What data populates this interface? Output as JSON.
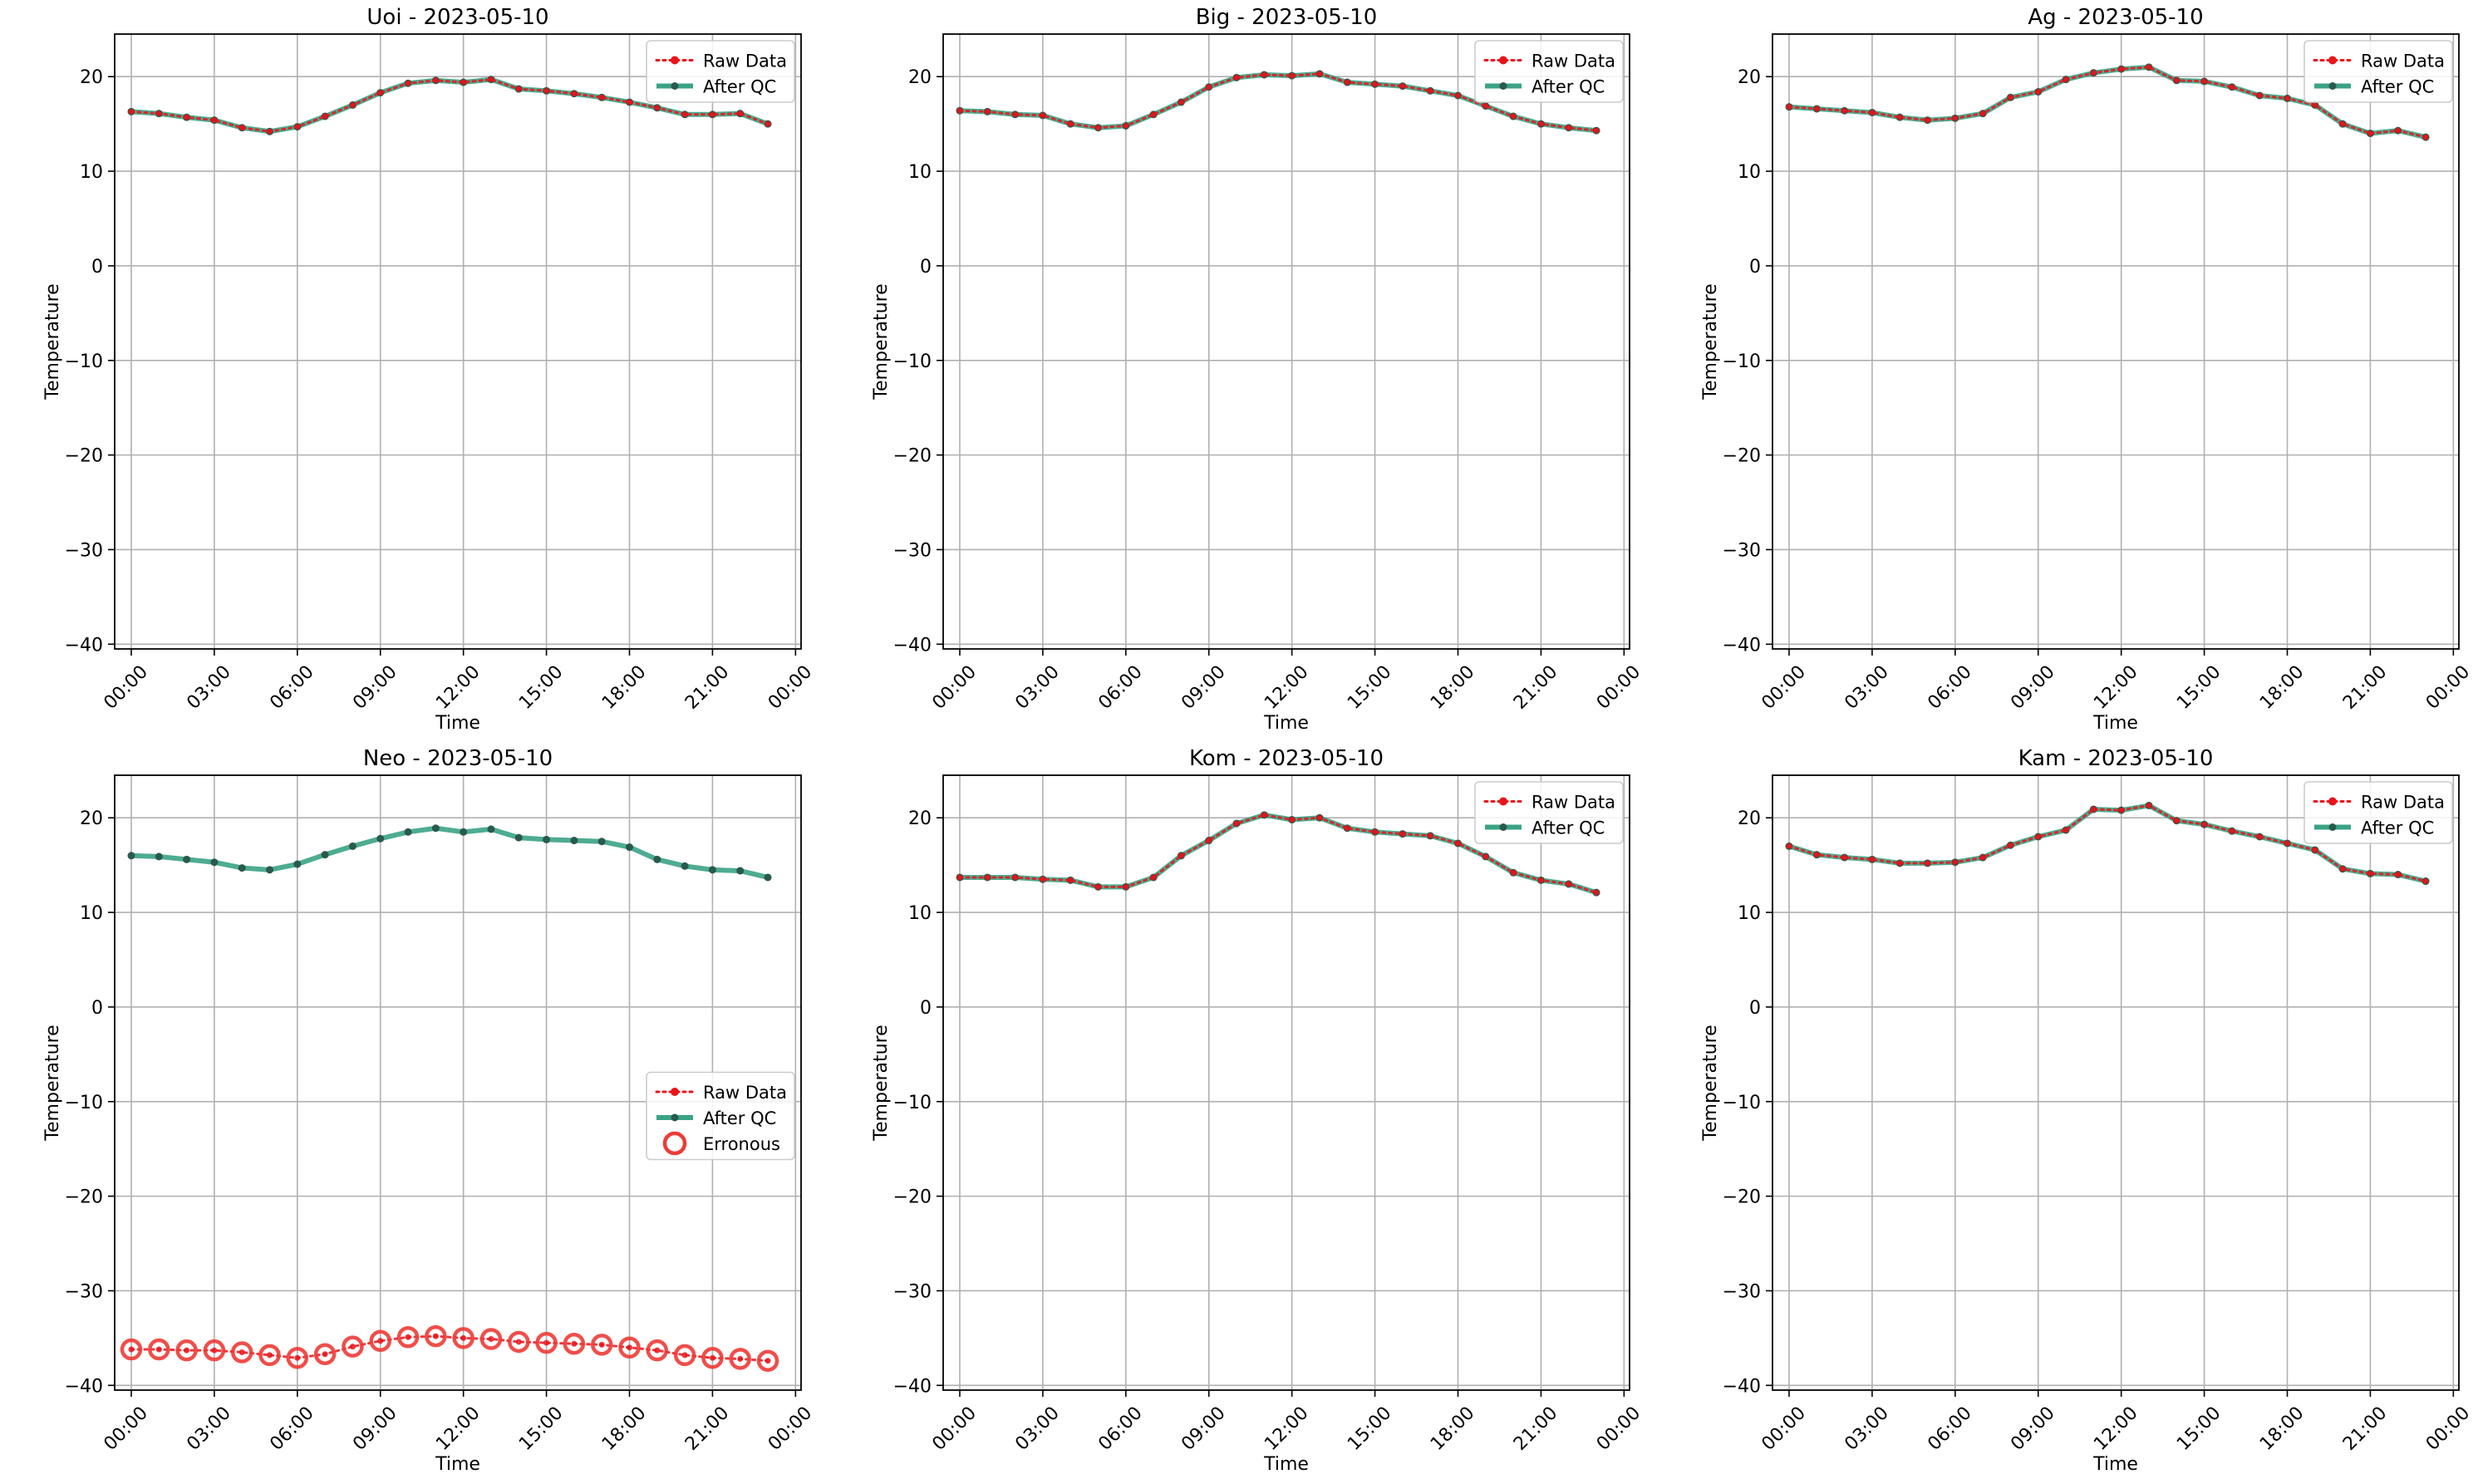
{
  "colors": {
    "raw": "#e8141a",
    "qc_line": "#3aa385",
    "qc_marker": "#2a5a4c",
    "erroneous": "#ee3b36",
    "grid": "#b0b0b0",
    "axis": "#000000"
  },
  "chart_data": [
    {
      "type": "line",
      "title": "Uoi - 2023-05-10",
      "xlabel": "Time",
      "ylabel": "Temperature",
      "ylim": [
        -40.5,
        24.5
      ],
      "xlim": [
        -0.6,
        24.2
      ],
      "grid": true,
      "legend_position": "upper right",
      "x_tick_labels": [
        "00:00",
        "03:00",
        "06:00",
        "09:00",
        "12:00",
        "15:00",
        "18:00",
        "21:00",
        "00:00"
      ],
      "x_tick_values": [
        0,
        3,
        6,
        9,
        12,
        15,
        18,
        21,
        24
      ],
      "y_tick_labels": [
        "20",
        "10",
        "0",
        "−10",
        "−20",
        "−30",
        "−40"
      ],
      "y_tick_values": [
        20,
        10,
        0,
        -10,
        -20,
        -30,
        -40
      ],
      "legend": [
        "Raw Data",
        "After QC"
      ],
      "x": [
        0,
        1,
        2,
        3,
        4,
        5,
        6,
        7,
        8,
        9,
        10,
        11,
        12,
        13,
        14,
        15,
        16,
        17,
        18,
        19,
        20,
        21,
        22,
        23
      ],
      "series": [
        {
          "name": "Raw Data",
          "values": [
            16.3,
            16.1,
            15.7,
            15.4,
            14.6,
            14.2,
            14.7,
            15.8,
            17.0,
            18.3,
            19.3,
            19.6,
            19.4,
            19.7,
            18.7,
            18.5,
            18.2,
            17.8,
            17.3,
            16.7,
            16.0,
            16.0,
            16.1,
            15.0
          ]
        },
        {
          "name": "After QC",
          "values": [
            16.3,
            16.1,
            15.7,
            15.4,
            14.6,
            14.2,
            14.7,
            15.8,
            17.0,
            18.3,
            19.3,
            19.6,
            19.4,
            19.7,
            18.7,
            18.5,
            18.2,
            17.8,
            17.3,
            16.7,
            16.0,
            16.0,
            16.1,
            15.0
          ]
        }
      ]
    },
    {
      "type": "line",
      "title": "Big - 2023-05-10",
      "xlabel": "Time",
      "ylabel": "Temperature",
      "ylim": [
        -40.5,
        24.5
      ],
      "xlim": [
        -0.6,
        24.2
      ],
      "grid": true,
      "legend_position": "upper right",
      "x_tick_labels": [
        "00:00",
        "03:00",
        "06:00",
        "09:00",
        "12:00",
        "15:00",
        "18:00",
        "21:00",
        "00:00"
      ],
      "x_tick_values": [
        0,
        3,
        6,
        9,
        12,
        15,
        18,
        21,
        24
      ],
      "y_tick_labels": [
        "20",
        "10",
        "0",
        "−10",
        "−20",
        "−30",
        "−40"
      ],
      "y_tick_values": [
        20,
        10,
        0,
        -10,
        -20,
        -30,
        -40
      ],
      "legend": [
        "Raw Data",
        "After QC"
      ],
      "x": [
        0,
        1,
        2,
        3,
        4,
        5,
        6,
        7,
        8,
        9,
        10,
        11,
        12,
        13,
        14,
        15,
        16,
        17,
        18,
        19,
        20,
        21,
        22,
        23
      ],
      "series": [
        {
          "name": "Raw Data",
          "values": [
            16.4,
            16.3,
            16.0,
            15.9,
            15.0,
            14.6,
            14.8,
            16.0,
            17.3,
            18.9,
            19.9,
            20.2,
            20.1,
            20.3,
            19.4,
            19.2,
            19.0,
            18.5,
            18.0,
            16.9,
            15.8,
            15.0,
            14.6,
            14.3
          ]
        },
        {
          "name": "After QC",
          "values": [
            16.4,
            16.3,
            16.0,
            15.9,
            15.0,
            14.6,
            14.8,
            16.0,
            17.3,
            18.9,
            19.9,
            20.2,
            20.1,
            20.3,
            19.4,
            19.2,
            19.0,
            18.5,
            18.0,
            16.9,
            15.8,
            15.0,
            14.6,
            14.3
          ]
        }
      ]
    },
    {
      "type": "line",
      "title": "Ag - 2023-05-10",
      "xlabel": "Time",
      "ylabel": "Temperature",
      "ylim": [
        -40.5,
        24.5
      ],
      "xlim": [
        -0.6,
        24.2
      ],
      "grid": true,
      "legend_position": "upper right",
      "x_tick_labels": [
        "00:00",
        "03:00",
        "06:00",
        "09:00",
        "12:00",
        "15:00",
        "18:00",
        "21:00",
        "00:00"
      ],
      "x_tick_values": [
        0,
        3,
        6,
        9,
        12,
        15,
        18,
        21,
        24
      ],
      "y_tick_labels": [
        "20",
        "10",
        "0",
        "−10",
        "−20",
        "−30",
        "−40"
      ],
      "y_tick_values": [
        20,
        10,
        0,
        -10,
        -20,
        -30,
        -40
      ],
      "legend": [
        "Raw Data",
        "After QC"
      ],
      "x": [
        0,
        1,
        2,
        3,
        4,
        5,
        6,
        7,
        8,
        9,
        10,
        11,
        12,
        13,
        14,
        15,
        16,
        17,
        18,
        19,
        20,
        21,
        22,
        23
      ],
      "series": [
        {
          "name": "Raw Data",
          "values": [
            16.8,
            16.6,
            16.4,
            16.2,
            15.7,
            15.4,
            15.6,
            16.1,
            17.8,
            18.4,
            19.7,
            20.4,
            20.8,
            21.0,
            19.6,
            19.5,
            18.9,
            18.0,
            17.7,
            17.0,
            15.0,
            14.0,
            14.3,
            13.6
          ]
        },
        {
          "name": "After QC",
          "values": [
            16.8,
            16.6,
            16.4,
            16.2,
            15.7,
            15.4,
            15.6,
            16.1,
            17.8,
            18.4,
            19.7,
            20.4,
            20.8,
            21.0,
            19.6,
            19.5,
            18.9,
            18.0,
            17.7,
            17.0,
            15.0,
            14.0,
            14.3,
            13.6
          ]
        }
      ]
    },
    {
      "type": "line",
      "title": "Neo - 2023-05-10",
      "xlabel": "Time",
      "ylabel": "Temperature",
      "ylim": [
        -40.5,
        24.5
      ],
      "xlim": [
        -0.6,
        24.2
      ],
      "grid": true,
      "legend_position": "center right",
      "x_tick_labels": [
        "00:00",
        "03:00",
        "06:00",
        "09:00",
        "12:00",
        "15:00",
        "18:00",
        "21:00",
        "00:00"
      ],
      "x_tick_values": [
        0,
        3,
        6,
        9,
        12,
        15,
        18,
        21,
        24
      ],
      "y_tick_labels": [
        "20",
        "10",
        "0",
        "−10",
        "−20",
        "−30",
        "−40"
      ],
      "y_tick_values": [
        20,
        10,
        0,
        -10,
        -20,
        -30,
        -40
      ],
      "legend": [
        "Raw Data",
        "After QC",
        "Erronous"
      ],
      "x": [
        0,
        1,
        2,
        3,
        4,
        5,
        6,
        7,
        8,
        9,
        10,
        11,
        12,
        13,
        14,
        15,
        16,
        17,
        18,
        19,
        20,
        21,
        22,
        23
      ],
      "series": [
        {
          "name": "Raw Data",
          "values": [
            -36.2,
            -36.2,
            -36.3,
            -36.3,
            -36.5,
            -36.8,
            -37.1,
            -36.7,
            -35.9,
            -35.3,
            -34.9,
            -34.8,
            -35.0,
            -35.1,
            -35.4,
            -35.5,
            -35.6,
            -35.7,
            -36.0,
            -36.3,
            -36.8,
            -37.1,
            -37.2,
            -37.4
          ]
        },
        {
          "name": "After QC",
          "values": [
            16.0,
            15.9,
            15.6,
            15.3,
            14.7,
            14.5,
            15.1,
            16.1,
            17.0,
            17.8,
            18.5,
            18.9,
            18.5,
            18.8,
            17.9,
            17.7,
            17.6,
            17.5,
            16.9,
            15.6,
            14.9,
            14.5,
            14.4,
            13.7
          ]
        },
        {
          "name": "Erronous",
          "values": [
            -36.2,
            -36.2,
            -36.3,
            -36.3,
            -36.5,
            -36.8,
            -37.1,
            -36.7,
            -35.9,
            -35.3,
            -34.9,
            -34.8,
            -35.0,
            -35.1,
            -35.4,
            -35.5,
            -35.6,
            -35.7,
            -36.0,
            -36.3,
            -36.8,
            -37.1,
            -37.2,
            -37.4
          ]
        }
      ]
    },
    {
      "type": "line",
      "title": "Kom - 2023-05-10",
      "xlabel": "Time",
      "ylabel": "Temperature",
      "ylim": [
        -40.5,
        24.5
      ],
      "xlim": [
        -0.6,
        24.2
      ],
      "grid": true,
      "legend_position": "upper right",
      "x_tick_labels": [
        "00:00",
        "03:00",
        "06:00",
        "09:00",
        "12:00",
        "15:00",
        "18:00",
        "21:00",
        "00:00"
      ],
      "x_tick_values": [
        0,
        3,
        6,
        9,
        12,
        15,
        18,
        21,
        24
      ],
      "y_tick_labels": [
        "20",
        "10",
        "0",
        "−10",
        "−20",
        "−30",
        "−40"
      ],
      "y_tick_values": [
        20,
        10,
        0,
        -10,
        -20,
        -30,
        -40
      ],
      "legend": [
        "Raw Data",
        "After QC"
      ],
      "x": [
        0,
        1,
        2,
        3,
        4,
        5,
        6,
        7,
        8,
        9,
        10,
        11,
        12,
        13,
        14,
        15,
        16,
        17,
        18,
        19,
        20,
        21,
        22,
        23
      ],
      "series": [
        {
          "name": "Raw Data",
          "values": [
            13.7,
            13.7,
            13.7,
            13.5,
            13.4,
            12.7,
            12.7,
            13.7,
            16.0,
            17.6,
            19.4,
            20.3,
            19.8,
            20.0,
            18.9,
            18.5,
            18.3,
            18.1,
            17.3,
            15.9,
            14.2,
            13.4,
            13.0,
            12.1
          ]
        },
        {
          "name": "After QC",
          "values": [
            13.7,
            13.7,
            13.7,
            13.5,
            13.4,
            12.7,
            12.7,
            13.7,
            16.0,
            17.6,
            19.4,
            20.3,
            19.8,
            20.0,
            18.9,
            18.5,
            18.3,
            18.1,
            17.3,
            15.9,
            14.2,
            13.4,
            13.0,
            12.1
          ]
        }
      ]
    },
    {
      "type": "line",
      "title": "Kam - 2023-05-10",
      "xlabel": "Time",
      "ylabel": "Temperature",
      "ylim": [
        -40.5,
        24.5
      ],
      "xlim": [
        -0.6,
        24.2
      ],
      "grid": true,
      "legend_position": "upper right",
      "x_tick_labels": [
        "00:00",
        "03:00",
        "06:00",
        "09:00",
        "12:00",
        "15:00",
        "18:00",
        "21:00",
        "00:00"
      ],
      "x_tick_values": [
        0,
        3,
        6,
        9,
        12,
        15,
        18,
        21,
        24
      ],
      "y_tick_labels": [
        "20",
        "10",
        "0",
        "−10",
        "−20",
        "−30",
        "−40"
      ],
      "y_tick_values": [
        20,
        10,
        0,
        -10,
        -20,
        -30,
        -40
      ],
      "legend": [
        "Raw Data",
        "After QC"
      ],
      "x": [
        0,
        1,
        2,
        3,
        4,
        5,
        6,
        7,
        8,
        9,
        10,
        11,
        12,
        13,
        14,
        15,
        16,
        17,
        18,
        19,
        20,
        21,
        22,
        23
      ],
      "series": [
        {
          "name": "Raw Data",
          "values": [
            17.0,
            16.1,
            15.8,
            15.6,
            15.2,
            15.2,
            15.3,
            15.8,
            17.1,
            18.0,
            18.7,
            20.9,
            20.8,
            21.3,
            19.7,
            19.3,
            18.6,
            18.0,
            17.3,
            16.6,
            14.6,
            14.1,
            14.0,
            13.3
          ]
        },
        {
          "name": "After QC",
          "values": [
            17.0,
            16.1,
            15.8,
            15.6,
            15.2,
            15.2,
            15.3,
            15.8,
            17.1,
            18.0,
            18.7,
            20.9,
            20.8,
            21.3,
            19.7,
            19.3,
            18.6,
            18.0,
            17.3,
            16.6,
            14.6,
            14.1,
            14.0,
            13.3
          ]
        }
      ]
    }
  ]
}
